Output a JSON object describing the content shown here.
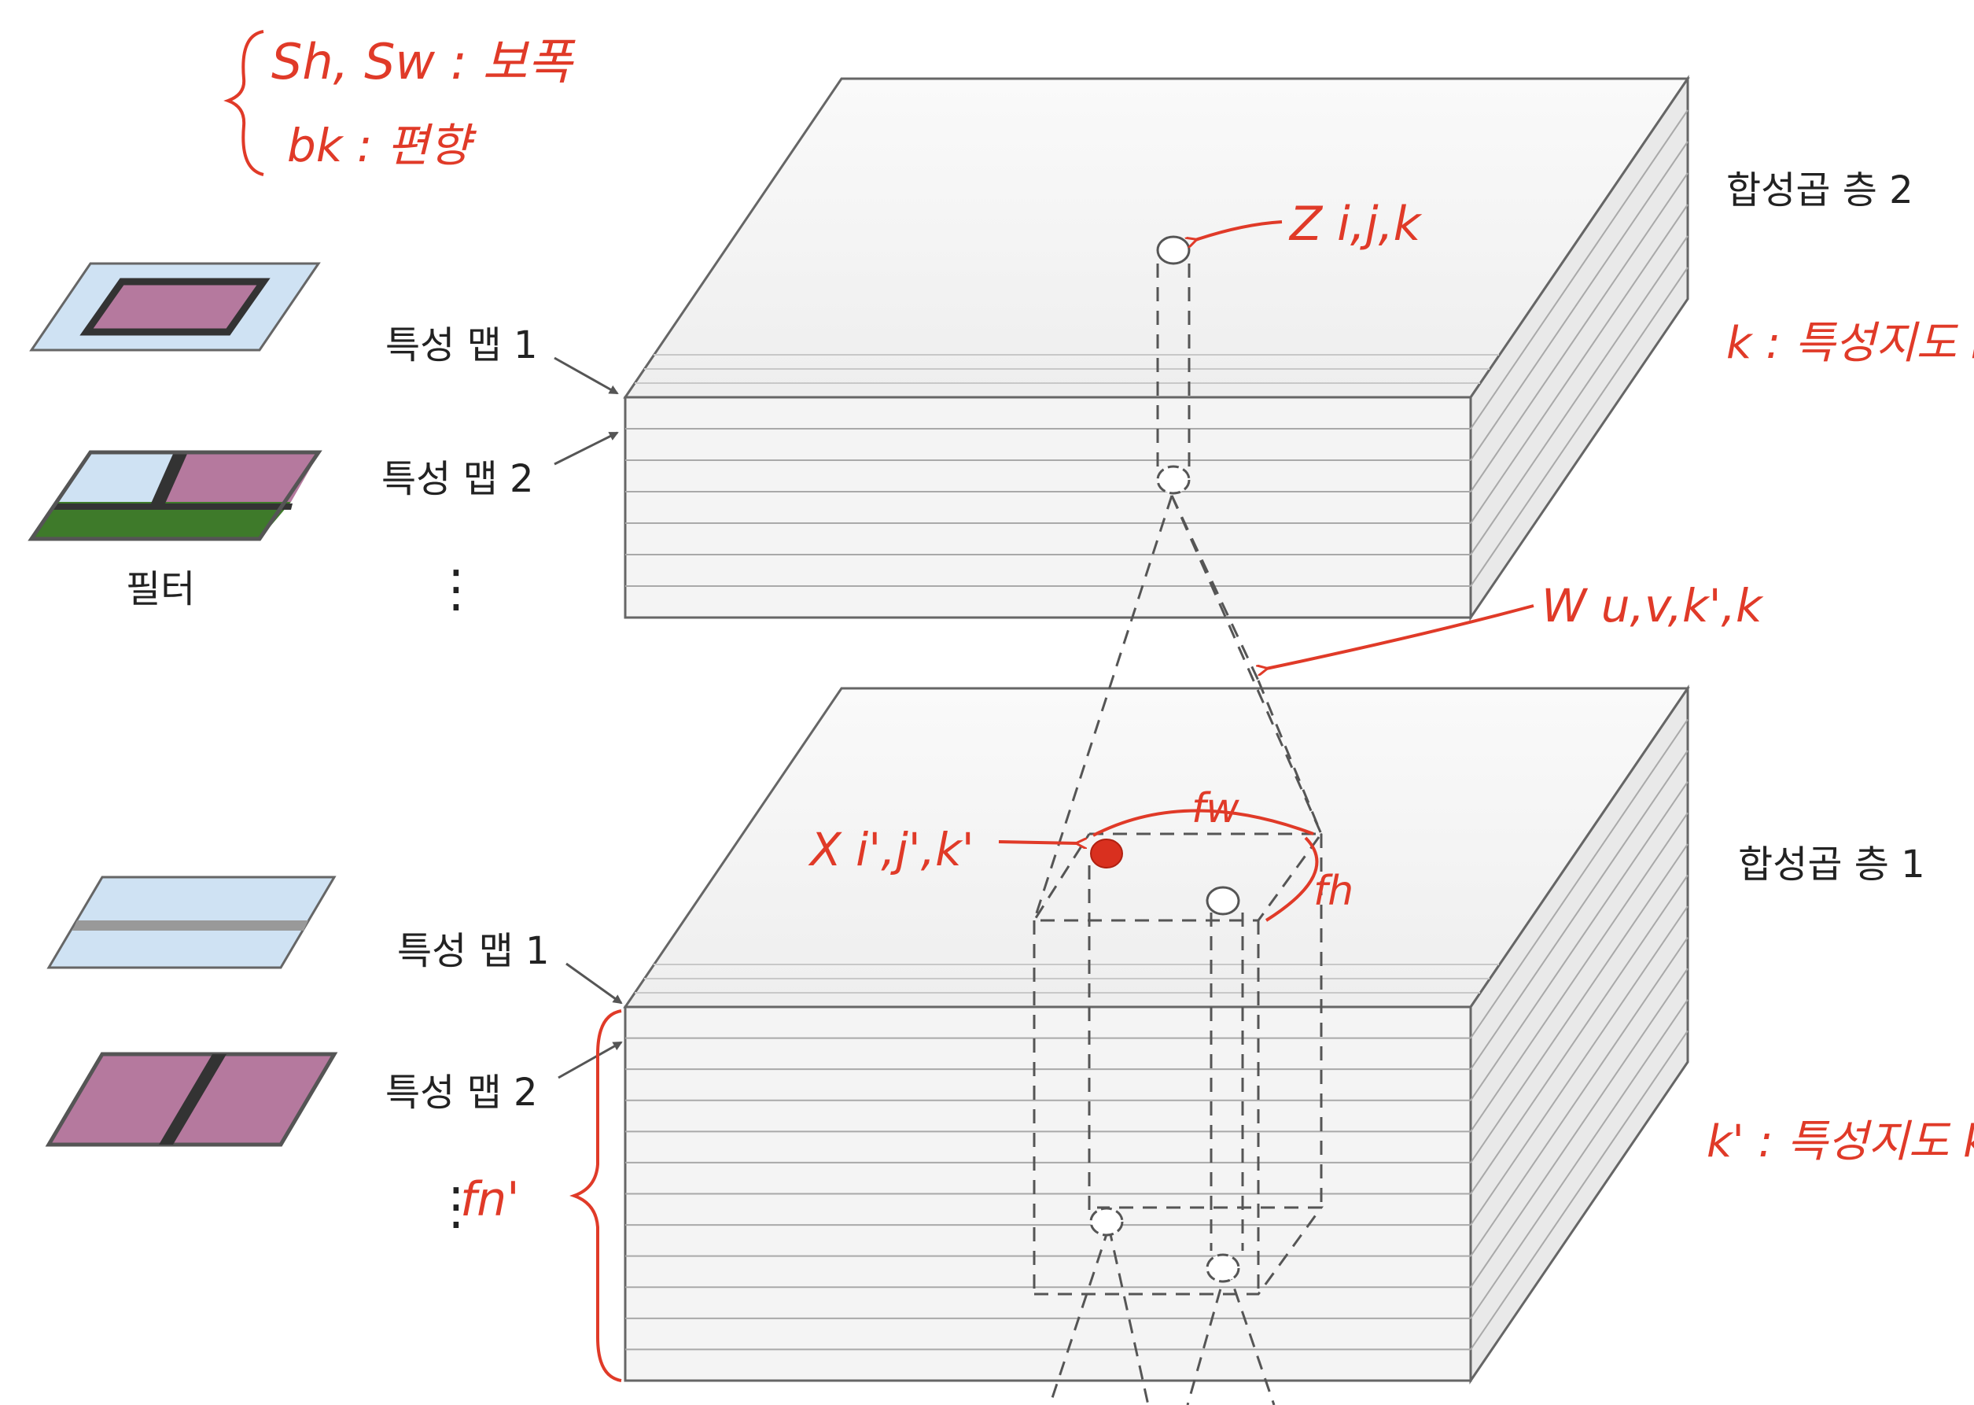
{
  "labels": {
    "conv_layer_2": "합성곱 층 2",
    "conv_layer_1": "합성곱 층 1",
    "feature_map_1_top": "특성 맵 1",
    "feature_map_2_top": "특성 맵 2",
    "feature_map_1_bottom": "특성 맵 1",
    "feature_map_2_bottom": "특성 맵 2",
    "filters": "필터",
    "ellipsis_top": "⋮",
    "ellipsis_bottom": "⋮"
  },
  "annotations": {
    "stride": "Sh, Sw : 보폭",
    "bias": "bk : 편향",
    "output_neuron": "Z i,j,k",
    "k_meaning": "k : 특성지도 k",
    "weight": "W u,v,k',k",
    "input_neuron": "X i',j',k'",
    "receptive_width": "fw",
    "receptive_height": "fh",
    "input_depth": "fn'",
    "k_prime_meaning": "k' : 특성지도 k'"
  },
  "colors": {
    "handwriting": "#e03a28",
    "filter_blue": "#cfe2f3",
    "filter_pink": "#b5799e",
    "filter_green": "#3e7a2a",
    "filter_gray": "#999999",
    "block_face": "#f2f2f2",
    "block_edge": "#777777",
    "dashed": "#555555"
  }
}
